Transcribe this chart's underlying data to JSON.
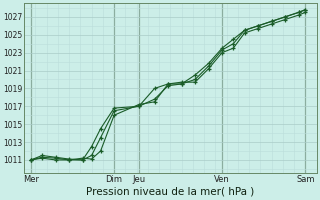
{
  "background_color": "#cceee8",
  "plot_bg_color": "#cceee8",
  "grid_major_color": "#aaccc8",
  "grid_minor_color": "#bbddda",
  "line_color": "#1a5c28",
  "xlabel": "Pression niveau de la mer( hPa )",
  "yticks": [
    1011,
    1013,
    1015,
    1017,
    1019,
    1021,
    1023,
    1025,
    1027
  ],
  "ylim": [
    1009.5,
    1028.5
  ],
  "xlim": [
    0,
    6.5
  ],
  "xtick_labels": [
    "Mer",
    "Dim",
    "Jeu",
    "Ven",
    "Sam"
  ],
  "xtick_positions": [
    0.15,
    2.0,
    2.55,
    4.4,
    6.25
  ],
  "vlines": [
    0.15,
    2.0,
    2.55,
    4.4,
    6.25
  ],
  "series1_x": [
    0.15,
    0.4,
    0.7,
    1.0,
    1.3,
    1.5,
    1.7,
    2.0,
    2.55,
    2.9,
    3.2,
    3.5,
    3.8,
    4.1,
    4.4,
    4.65,
    4.9,
    5.2,
    5.5,
    5.8,
    6.1,
    6.25
  ],
  "series1_y": [
    1011,
    1011.3,
    1011.2,
    1011.0,
    1011.2,
    1011.1,
    1012.0,
    1016.0,
    1017.2,
    1017.5,
    1019.5,
    1019.7,
    1019.7,
    1021.2,
    1023.0,
    1023.5,
    1025.2,
    1025.7,
    1026.2,
    1026.7,
    1027.2,
    1027.5
  ],
  "series2_x": [
    0.15,
    0.4,
    0.7,
    1.0,
    1.3,
    1.5,
    1.7,
    2.0,
    2.55,
    2.9,
    3.2,
    3.5,
    3.8,
    4.1,
    4.4,
    4.65,
    4.9,
    5.2,
    5.5,
    5.8,
    6.1,
    6.25
  ],
  "series2_y": [
    1011,
    1011.5,
    1011.3,
    1011.1,
    1011.0,
    1011.5,
    1013.5,
    1016.5,
    1017.0,
    1017.8,
    1019.3,
    1019.5,
    1020.0,
    1021.5,
    1023.3,
    1024.0,
    1025.5,
    1026.0,
    1026.5,
    1027.0,
    1027.5,
    1027.8
  ],
  "series3_x": [
    0.15,
    0.4,
    0.7,
    1.0,
    1.3,
    1.5,
    1.7,
    2.0,
    2.55,
    2.9,
    3.2,
    3.5,
    3.8,
    4.1,
    4.4,
    4.65,
    4.9,
    5.2,
    5.5,
    5.8,
    6.1,
    6.25
  ],
  "series3_y": [
    1011,
    1011.2,
    1011.0,
    1011.0,
    1011.0,
    1012.5,
    1014.5,
    1016.8,
    1017.0,
    1019.0,
    1019.5,
    1019.5,
    1020.5,
    1021.8,
    1023.5,
    1024.5,
    1025.5,
    1026.0,
    1026.5,
    1027.0,
    1027.5,
    1027.8
  ],
  "xlabel_fontsize": 7.5,
  "ytick_fontsize": 5.5,
  "xtick_fontsize": 6.0
}
